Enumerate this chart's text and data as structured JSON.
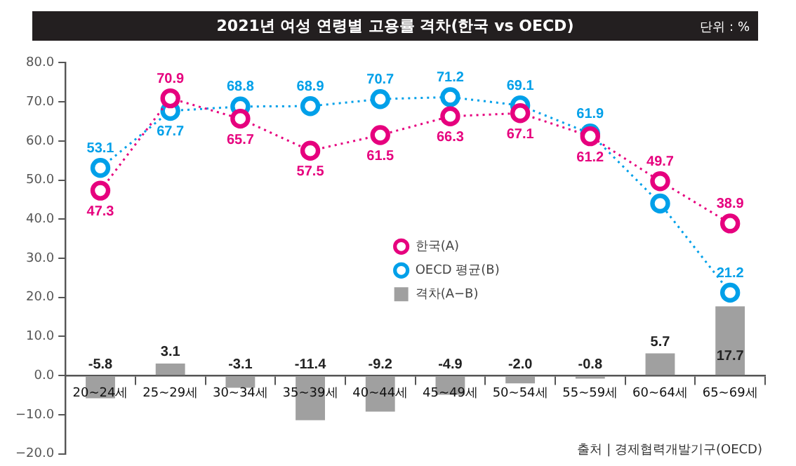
{
  "chart_data": {
    "type": "line",
    "title": "2021년 여성 연령별 고용률 격차(한국 vs OECD)",
    "annotations": [
      "단위 : %",
      "출처 | 경제협력개발기구(OECD)"
    ],
    "categories": [
      "20~24세",
      "25~29세",
      "30~34세",
      "35~39세",
      "40~44세",
      "45~49세",
      "50~54세",
      "55~59세",
      "60~64세",
      "65~69세"
    ],
    "series": [
      {
        "name": "한국(A)",
        "color": "#e6007e",
        "values": [
          47.3,
          70.9,
          65.7,
          57.5,
          61.5,
          66.3,
          67.1,
          61.2,
          49.7,
          38.9
        ],
        "value_labels": [
          "47.3",
          "70.9",
          "65.7",
          "57.5",
          "61.5",
          "66.3",
          "67.1",
          "61.2",
          "49.7",
          "38.9"
        ]
      },
      {
        "name": "OECD 평균(B)",
        "color": "#00a0e9",
        "values": [
          53.1,
          67.7,
          68.8,
          68.9,
          70.7,
          71.2,
          69.1,
          61.9,
          44.0,
          21.2
        ],
        "value_labels": [
          "53.1",
          "67.7",
          "68.8",
          "68.9",
          "70.7",
          "71.2",
          "69.1",
          "61.9",
          null,
          "21.2"
        ]
      },
      {
        "name": "격차(A−B)",
        "type": "bar",
        "color": "#a0a0a0",
        "values": [
          -5.8,
          3.1,
          -3.1,
          -11.4,
          -9.2,
          -4.9,
          -2.0,
          -0.8,
          5.7,
          17.7
        ],
        "value_labels": [
          "-5.8",
          "3.1",
          "-3.1",
          "-11.4",
          "-9.2",
          "-4.9",
          "-2.0",
          "-0.8",
          "5.7",
          "17.7"
        ]
      }
    ],
    "ylim": [
      -20,
      80
    ],
    "yticks": [
      {
        "value": -20,
        "label": "−20.0"
      },
      {
        "value": -10,
        "label": "−10.0"
      },
      {
        "value": 0,
        "label": "0.0"
      },
      {
        "value": 10,
        "label": "10.0"
      },
      {
        "value": 20,
        "label": "20.0"
      },
      {
        "value": 30,
        "label": "30.0"
      },
      {
        "value": 40,
        "label": "40.0"
      },
      {
        "value": 50,
        "label": "50.0"
      },
      {
        "value": 60,
        "label": "60.0"
      },
      {
        "value": 70,
        "label": "70.0"
      },
      {
        "value": 80,
        "label": "80.0"
      }
    ],
    "grid": false,
    "legend": "center right",
    "marker": "circle",
    "line_style": "dotted"
  }
}
